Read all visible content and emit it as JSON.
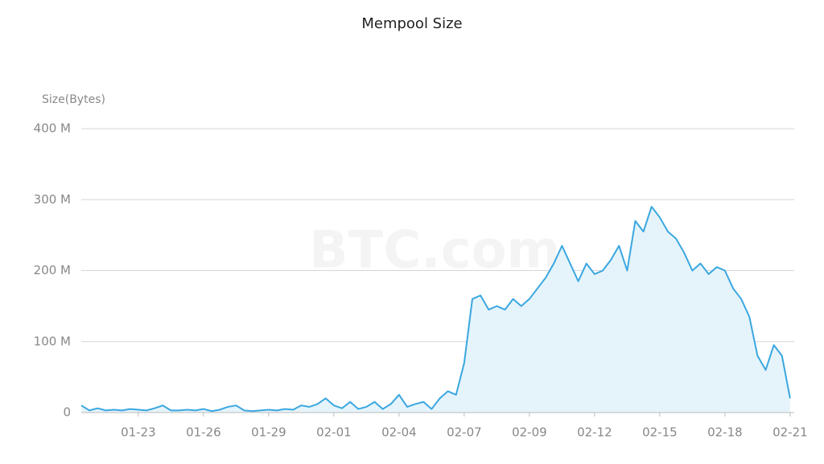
{
  "chart_data": {
    "type": "area",
    "title": "Mempool Size",
    "y_label": "Size(Bytes)",
    "watermark": "BTC.com",
    "categories": [
      null,
      null,
      null,
      null,
      null,
      null,
      null,
      "01-23",
      null,
      null,
      null,
      null,
      null,
      null,
      null,
      "01-26",
      null,
      null,
      null,
      null,
      null,
      null,
      null,
      "01-29",
      null,
      null,
      null,
      null,
      null,
      null,
      null,
      "02-01",
      null,
      null,
      null,
      null,
      null,
      null,
      null,
      "02-04",
      null,
      null,
      null,
      null,
      null,
      null,
      null,
      "02-07",
      null,
      null,
      null,
      null,
      null,
      null,
      null,
      "02-09",
      null,
      null,
      null,
      null,
      null,
      null,
      null,
      "02-12",
      null,
      null,
      null,
      null,
      null,
      null,
      null,
      "02-15",
      null,
      null,
      null,
      null,
      null,
      null,
      null,
      "02-18",
      null,
      null,
      null,
      null,
      null,
      null,
      null,
      "02-21"
    ],
    "series": [
      {
        "name": "Size",
        "color": "#3aa7e0",
        "fill": "#e5f4fb",
        "values": [
          10000000.0,
          3000000.0,
          6000000.0,
          3000000.0,
          4000000.0,
          3000000.0,
          5000000.0,
          4000000.0,
          3000000.0,
          6000000.0,
          10000000.0,
          3000000.0,
          3000000.0,
          4000000.0,
          3000000.0,
          5000000.0,
          2000000.0,
          4000000.0,
          8000000.0,
          10000000.0,
          3000000.0,
          2000000.0,
          3000000.0,
          4000000.0,
          3000000.0,
          5000000.0,
          4000000.0,
          10000000.0,
          8000000.0,
          12000000.0,
          20000000.0,
          10000000.0,
          6000000.0,
          15000000.0,
          5000000.0,
          8000000.0,
          15000000.0,
          5000000.0,
          12000000.0,
          25000000.0,
          8000000.0,
          12000000.0,
          15000000.0,
          5000000.0,
          20000000.0,
          30000000.0,
          25000000.0,
          70000000.0,
          160000000.0,
          165000000.0,
          145000000.0,
          150000000.0,
          145000000.0,
          160000000.0,
          150000000.0,
          160000000.0,
          175000000.0,
          190000000.0,
          210000000.0,
          235000000.0,
          210000000.0,
          185000000.0,
          210000000.0,
          195000000.0,
          200000000.0,
          215000000.0,
          235000000.0,
          200000000.0,
          270000000.0,
          255000000.0,
          290000000.0,
          275000000.0,
          255000000.0,
          245000000.0,
          225000000.0,
          200000000.0,
          210000000.0,
          195000000.0,
          205000000.0,
          200000000.0,
          175000000.0,
          160000000.0,
          135000000.0,
          80000000.0,
          60000000.0,
          95000000.0,
          80000000.0,
          20000000.0
        ]
      }
    ],
    "ylim": [
      0,
      400000000
    ],
    "yticks": [
      0,
      {
        "value": 100000000,
        "label": "100 M"
      },
      {
        "value": 200000000,
        "label": "200 M"
      },
      {
        "value": 300000000,
        "label": "300 M"
      },
      {
        "value": 400000000,
        "label": "400 M"
      }
    ],
    "grid": true
  }
}
